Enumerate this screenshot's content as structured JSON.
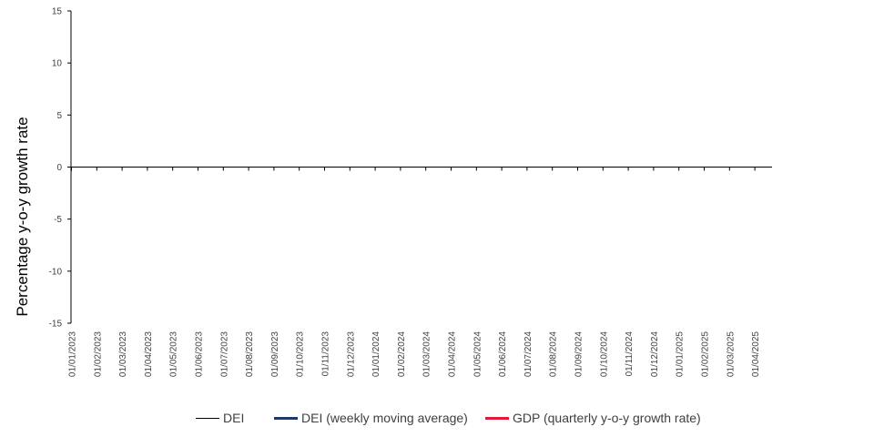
{
  "chart_data": {
    "type": "line",
    "title": "",
    "xlabel": "",
    "ylabel": "Percentage y-o-y growth rate",
    "ylim": [
      -15,
      15
    ],
    "yticks": [
      15,
      10,
      5,
      0,
      -5,
      -10,
      -15
    ],
    "ytick_labels": [
      "15",
      "10",
      "5",
      "0",
      "-5",
      "-10",
      "-15"
    ],
    "x_tick_labels": [
      "01/01/2023",
      "01/02/2023",
      "01/03/2023",
      "01/04/2023",
      "01/05/2023",
      "01/06/2023",
      "01/07/2023",
      "01/08/2023",
      "01/09/2023",
      "01/10/2023",
      "01/11/2023",
      "01/12/2023",
      "01/01/2024",
      "01/02/2024",
      "01/03/2024",
      "01/04/2024",
      "01/05/2024",
      "01/06/2024",
      "01/07/2024",
      "01/08/2024",
      "01/09/2024",
      "01/10/2024",
      "01/11/2024",
      "01/12/2024",
      "01/01/2025",
      "01/02/2025",
      "01/03/2025",
      "01/04/2025"
    ],
    "grid": false,
    "legend_position": "bottom",
    "series": [
      {
        "name": "DEI",
        "color": "#000000",
        "values": []
      },
      {
        "name": "DEI (weekly moving average)",
        "color": "#1f3864",
        "values": []
      },
      {
        "name": "GDP (quarterly y-o-y growth rate)",
        "color": "#e31937",
        "values": []
      }
    ]
  }
}
